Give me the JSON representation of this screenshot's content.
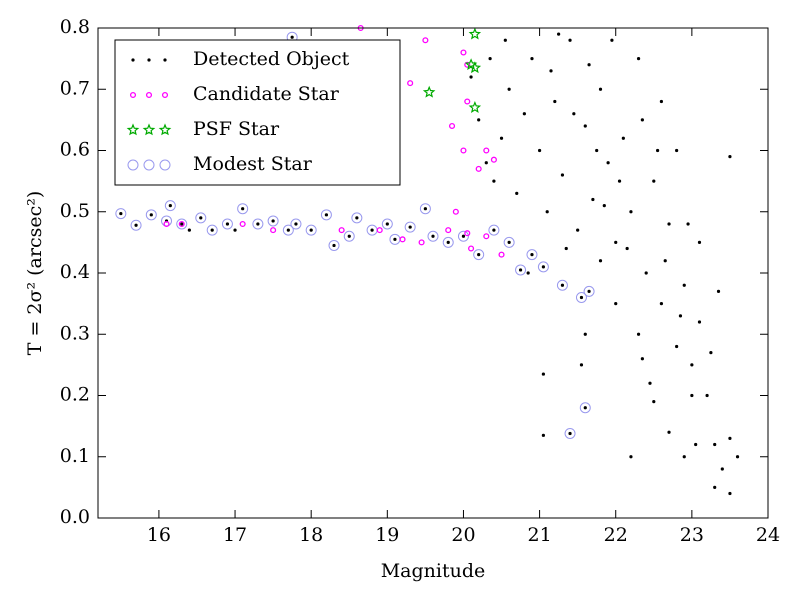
{
  "chart_data": {
    "type": "scatter",
    "xlabel": "Magnitude",
    "ylabel": "T = 2σ² (arcsec²)",
    "xlim": [
      15.2,
      24
    ],
    "ylim": [
      0,
      0.8
    ],
    "xticks": [
      16,
      17,
      18,
      19,
      20,
      21,
      22,
      23,
      24
    ],
    "yticks": [
      {
        "value": 0,
        "label": "0.0"
      },
      0.1,
      0.2,
      0.3,
      0.4,
      0.5,
      0.6,
      0.7,
      0.8
    ],
    "legend": "upper left",
    "series": [
      {
        "name": "Detected Object",
        "color": "#000000",
        "marker": "dot",
        "x": [
          15.5,
          15.7,
          15.9,
          16.1,
          16.15,
          16.3,
          16.4,
          16.55,
          16.7,
          16.9,
          17.0,
          17.1,
          17.3,
          17.5,
          17.7,
          17.8,
          18.0,
          18.2,
          18.3,
          18.5,
          18.6,
          18.8,
          19.0,
          19.1,
          19.3,
          19.5,
          19.6,
          19.8,
          20.0,
          20.2,
          20.4,
          20.6,
          20.75,
          20.9,
          21.05,
          21.3,
          21.55,
          21.65,
          21.05,
          21.4,
          21.6,
          21.05,
          17.75,
          20.1,
          20.2,
          20.3,
          20.4,
          20.5,
          20.6,
          20.7,
          20.8,
          20.9,
          21.0,
          21.1,
          21.2,
          21.3,
          21.4,
          21.5,
          21.6,
          21.7,
          21.8,
          21.9,
          22.0,
          22.1,
          22.2,
          22.3,
          22.4,
          22.5,
          22.6,
          22.7,
          22.8,
          22.9,
          23.0,
          23.1,
          23.2,
          23.3,
          23.4,
          23.5,
          23.6,
          23.5,
          23.3,
          22.2,
          22.5,
          22.7,
          22.3,
          22.0,
          21.8,
          21.6,
          22.9,
          23.0,
          23.5,
          23.1,
          22.8,
          22.6,
          21.95,
          21.25,
          20.85,
          21.35,
          22.05,
          22.35,
          22.65,
          21.75,
          21.15,
          20.55,
          22.45,
          22.85,
          23.25,
          20.35,
          21.45,
          21.85,
          22.15,
          22.55,
          22.95,
          23.35,
          21.55,
          23.05,
          22.35,
          21.65
        ],
        "y": [
          0.497,
          0.478,
          0.495,
          0.485,
          0.51,
          0.48,
          0.47,
          0.49,
          0.47,
          0.48,
          0.47,
          0.505,
          0.48,
          0.485,
          0.47,
          0.48,
          0.47,
          0.495,
          0.445,
          0.46,
          0.49,
          0.47,
          0.48,
          0.455,
          0.475,
          0.505,
          0.46,
          0.45,
          0.46,
          0.43,
          0.47,
          0.45,
          0.405,
          0.43,
          0.41,
          0.38,
          0.36,
          0.37,
          0.135,
          0.138,
          0.18,
          0.235,
          0.785,
          0.72,
          0.65,
          0.58,
          0.55,
          0.62,
          0.7,
          0.53,
          0.66,
          0.75,
          0.6,
          0.5,
          0.68,
          0.56,
          0.78,
          0.47,
          0.64,
          0.52,
          0.7,
          0.58,
          0.45,
          0.62,
          0.5,
          0.75,
          0.4,
          0.55,
          0.35,
          0.48,
          0.28,
          0.38,
          0.25,
          0.32,
          0.2,
          0.12,
          0.08,
          0.13,
          0.1,
          0.04,
          0.05,
          0.1,
          0.19,
          0.14,
          0.3,
          0.35,
          0.42,
          0.3,
          0.1,
          0.2,
          0.59,
          0.45,
          0.6,
          0.68,
          0.78,
          0.79,
          0.4,
          0.44,
          0.55,
          0.65,
          0.42,
          0.6,
          0.73,
          0.78,
          0.22,
          0.33,
          0.27,
          0.75,
          0.66,
          0.51,
          0.44,
          0.6,
          0.48,
          0.37,
          0.25,
          0.12,
          0.26,
          0.74
        ]
      },
      {
        "name": "Candidate Star",
        "color": "#ff00ff",
        "marker": "ring",
        "x": [
          16.1,
          16.3,
          17.1,
          17.5,
          18.4,
          18.9,
          19.2,
          19.45,
          19.8,
          20.05,
          20.1,
          20.5,
          19.9,
          20.3,
          19.85,
          20.05,
          20.0,
          20.2,
          20.3,
          19.5,
          20.0,
          19.3,
          20.4,
          18.65,
          20.05
        ],
        "y": [
          0.48,
          0.48,
          0.48,
          0.47,
          0.47,
          0.47,
          0.455,
          0.45,
          0.47,
          0.465,
          0.44,
          0.43,
          0.5,
          0.46,
          0.64,
          0.68,
          0.6,
          0.57,
          0.6,
          0.78,
          0.76,
          0.71,
          0.585,
          0.8,
          0.74
        ]
      },
      {
        "name": "PSF Star",
        "color": "#00aa00",
        "marker": "star",
        "x": [
          19.55,
          20.1,
          20.15,
          20.15,
          20.15
        ],
        "y": [
          0.695,
          0.74,
          0.67,
          0.79,
          0.735
        ]
      },
      {
        "name": "Modest Star",
        "color": "#9999ee",
        "marker": "circle",
        "x": [
          15.5,
          15.7,
          15.9,
          16.1,
          16.15,
          16.3,
          16.55,
          16.7,
          16.9,
          17.1,
          17.3,
          17.5,
          17.7,
          17.8,
          18.0,
          18.2,
          18.3,
          18.5,
          18.6,
          18.8,
          19.0,
          19.1,
          19.3,
          19.5,
          19.6,
          19.8,
          20.0,
          20.2,
          20.4,
          20.6,
          20.75,
          20.9,
          21.05,
          21.3,
          21.55,
          21.65,
          21.4,
          21.6,
          17.75
        ],
        "y": [
          0.497,
          0.478,
          0.495,
          0.485,
          0.51,
          0.48,
          0.49,
          0.47,
          0.48,
          0.505,
          0.48,
          0.485,
          0.47,
          0.48,
          0.47,
          0.495,
          0.445,
          0.46,
          0.49,
          0.47,
          0.48,
          0.455,
          0.475,
          0.505,
          0.46,
          0.45,
          0.46,
          0.43,
          0.47,
          0.45,
          0.405,
          0.43,
          0.41,
          0.38,
          0.36,
          0.37,
          0.138,
          0.18,
          0.785
        ]
      }
    ]
  }
}
